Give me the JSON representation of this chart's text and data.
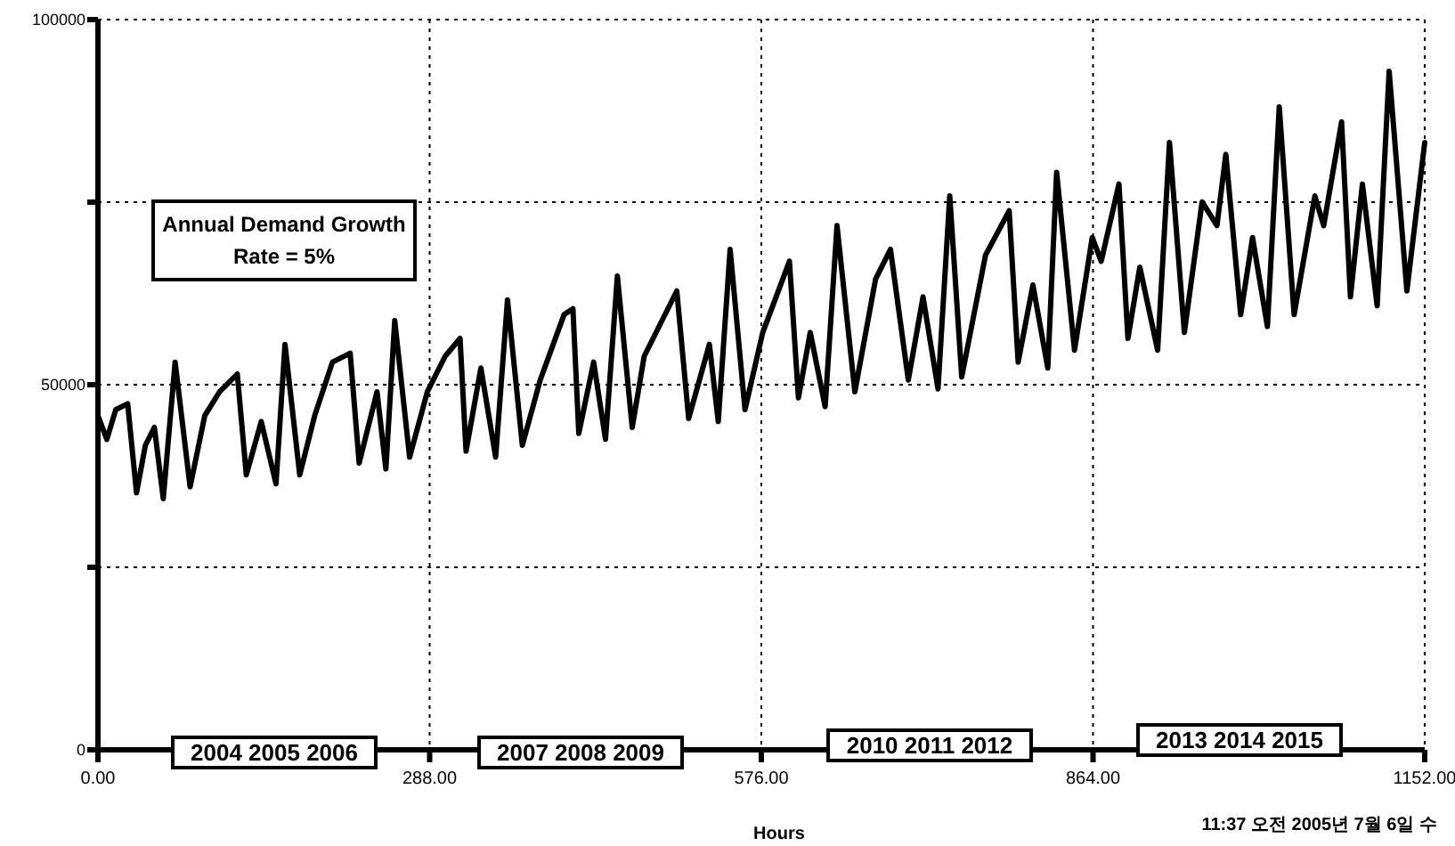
{
  "chart_data": {
    "type": "line",
    "xlabel": "Hours",
    "color": "#000000",
    "grid": true,
    "xlim": [
      0,
      1152
    ],
    "ylim": [
      0,
      100000
    ],
    "xticks": [
      {
        "value": 0,
        "label": "0.00"
      },
      {
        "value": 288,
        "label": "288.00"
      },
      {
        "value": 576,
        "label": "576.00"
      },
      {
        "value": 864,
        "label": "864.00"
      },
      {
        "value": 1152,
        "label": "1152.00"
      }
    ],
    "yticks": [
      0,
      {
        "value": 25000,
        "label": null
      },
      50000,
      {
        "value": 75000,
        "label": null
      },
      100000
    ],
    "annotations": [
      "Annual Demand Growth Rate = 5%",
      "2004 2005 2006",
      "2007 2008 2009",
      "2010 2011 2012",
      "2013 2014 2015",
      "11:37 오전 2005년 7월 6일 수"
    ],
    "x": [
      0,
      7.7,
      15.5,
      25.8,
      33.5,
      41.2,
      49,
      56.7,
      67,
      80,
      92.8,
      105.6,
      121,
      128.8,
      141.8,
      154.6,
      162.4,
      175.2,
      188.2,
      203.6,
      219,
      226.8,
      242.3,
      250,
      257.7,
      270.6,
      286,
      301.5,
      314.4,
      319.6,
      332.5,
      345.3,
      355.6,
      368.5,
      384,
      404.7,
      412.4,
      417.5,
      430.4,
      440.7,
      451,
      463.9,
      474.3,
      502.6,
      512.9,
      530.9,
      538.6,
      548.9,
      561.8,
      577.2,
      585,
      600.4,
      608.2,
      618.5,
      631.4,
      641.7,
      657.2,
      675.2,
      688.1,
      703.6,
      716.4,
      729.4,
      739.6,
      750,
      770.6,
      791.2,
      799,
      811.8,
      824.7,
      832.4,
      847.9,
      863.3,
      871.1,
      886.5,
      894.3,
      904.6,
      920.1,
      930.4,
      943.3,
      958.7,
      971.6,
      979.3,
      992.2,
      1002.5,
      1015.4,
      1025.7,
      1038.6,
      1056.6,
      1064.3,
      1079.8,
      1087.5,
      1097.9,
      1110.7,
      1121.1,
      1136.5,
      1152
    ],
    "values": [
      45770,
      42520,
      46590,
      47400,
      35200,
      41710,
      44150,
      34390,
      53090,
      36020,
      45770,
      49030,
      51460,
      37650,
      44960,
      36420,
      55530,
      37650,
      45770,
      53090,
      54310,
      39270,
      49030,
      38460,
      58780,
      40080,
      49030,
      53900,
      56340,
      40900,
      52280,
      40080,
      61620,
      41710,
      50650,
      59590,
      60410,
      43330,
      53090,
      42520,
      64880,
      44150,
      53900,
      62840,
      45370,
      55530,
      44960,
      68540,
      46590,
      57150,
      60410,
      66910,
      48210,
      57150,
      46990,
      71790,
      49030,
      64470,
      68540,
      50650,
      62030,
      49430,
      75850,
      51060,
      67720,
      73820,
      53090,
      63660,
      52280,
      79100,
      54720,
      70160,
      66910,
      77480,
      56340,
      66100,
      54720,
      83170,
      57150,
      75040,
      71790,
      81540,
      59590,
      70160,
      57970,
      88050,
      59590,
      75850,
      71790,
      86010,
      62030,
      77480,
      60810,
      92930,
      62840,
      83170
    ]
  }
}
